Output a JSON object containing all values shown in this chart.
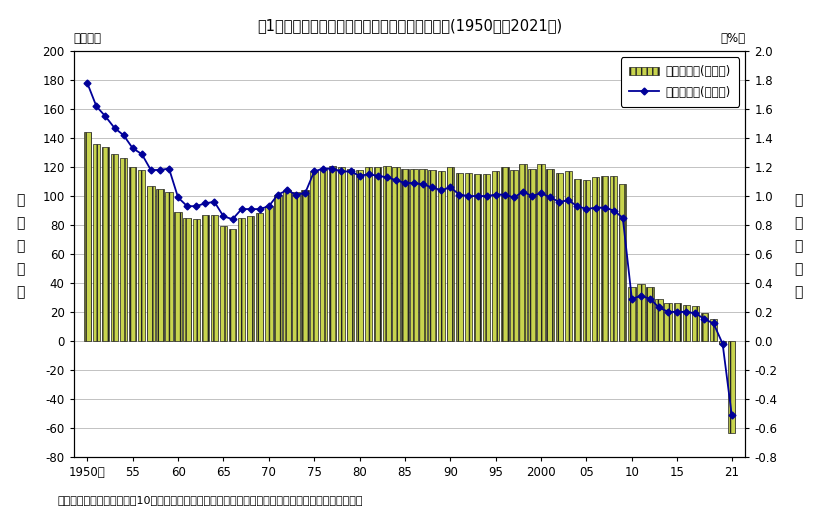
{
  "title": "図1　総人口の人口増減数及び人口増減率の推移(1950年～2021年)",
  "note": "注）　人口増減率は、前年10月から当年９月までの人口増減数を前年人口（期首人口）で除したもの",
  "ylabel_left": "人\n口\n増\n減\n数",
  "ylabel_right": "人\n口\n増\n減\n率",
  "xlabel_unit_left": "（万人）",
  "xlabel_unit_right": "（%）",
  "ylim_left": [
    -80,
    200
  ],
  "ylim_right": [
    -0.8,
    2.0
  ],
  "bar_color": "#c8d44e",
  "bar_edge_color": "#222222",
  "line_color": "#000099",
  "years": [
    1950,
    1951,
    1952,
    1953,
    1954,
    1955,
    1956,
    1957,
    1958,
    1959,
    1960,
    1961,
    1962,
    1963,
    1964,
    1965,
    1966,
    1967,
    1968,
    1969,
    1970,
    1971,
    1972,
    1973,
    1974,
    1975,
    1976,
    1977,
    1978,
    1979,
    1980,
    1981,
    1982,
    1983,
    1984,
    1985,
    1986,
    1987,
    1988,
    1989,
    1990,
    1991,
    1992,
    1993,
    1994,
    1995,
    1996,
    1997,
    1998,
    1999,
    2000,
    2001,
    2002,
    2003,
    2004,
    2005,
    2006,
    2007,
    2008,
    2009,
    2010,
    2011,
    2012,
    2013,
    2014,
    2015,
    2016,
    2017,
    2018,
    2019,
    2020,
    2021
  ],
  "bar_values": [
    144,
    136,
    134,
    129,
    126,
    120,
    118,
    107,
    105,
    103,
    89,
    85,
    84,
    87,
    87,
    79,
    77,
    85,
    86,
    88,
    93,
    101,
    104,
    103,
    104,
    117,
    119,
    121,
    120,
    119,
    118,
    120,
    120,
    121,
    120,
    119,
    119,
    119,
    118,
    117,
    120,
    116,
    116,
    115,
    115,
    117,
    120,
    118,
    122,
    119,
    122,
    119,
    116,
    117,
    112,
    111,
    113,
    114,
    114,
    108,
    37,
    39,
    37,
    29,
    26,
    26,
    25,
    24,
    19,
    15,
    -2,
    -64
  ],
  "line_values": [
    1.78,
    1.62,
    1.55,
    1.47,
    1.42,
    1.33,
    1.29,
    1.18,
    1.18,
    1.19,
    0.99,
    0.93,
    0.93,
    0.95,
    0.96,
    0.86,
    0.84,
    0.91,
    0.91,
    0.91,
    0.93,
    1.01,
    1.04,
    1.01,
    1.02,
    1.17,
    1.19,
    1.19,
    1.17,
    1.17,
    1.14,
    1.15,
    1.14,
    1.13,
    1.11,
    1.09,
    1.09,
    1.08,
    1.06,
    1.04,
    1.06,
    1.01,
    1.0,
    1.0,
    1.0,
    1.01,
    1.01,
    0.99,
    1.03,
    1.0,
    1.02,
    0.99,
    0.96,
    0.97,
    0.93,
    0.91,
    0.92,
    0.92,
    0.9,
    0.85,
    0.29,
    0.31,
    0.29,
    0.23,
    0.2,
    0.2,
    0.2,
    0.19,
    0.15,
    0.12,
    -0.02,
    -0.51
  ],
  "xtick_positions": [
    1950,
    1955,
    1960,
    1965,
    1970,
    1975,
    1980,
    1985,
    1990,
    1995,
    2000,
    2005,
    2010,
    2015,
    2021
  ],
  "xtick_labels": [
    "1950年",
    "55",
    "60",
    "65",
    "70",
    "75",
    "80",
    "85",
    "90",
    "95",
    "2000",
    "05",
    "10",
    "15",
    "21"
  ],
  "yticks_left": [
    -80,
    -60,
    -40,
    -20,
    0,
    20,
    40,
    60,
    80,
    100,
    120,
    140,
    160,
    180,
    200
  ],
  "yticks_right": [
    -0.8,
    -0.6,
    -0.4,
    -0.2,
    0.0,
    0.2,
    0.4,
    0.6,
    0.8,
    1.0,
    1.2,
    1.4,
    1.6,
    1.8,
    2.0
  ],
  "legend_bar_label": "人口増減数(左目盛)",
  "legend_line_label": "人口増減率(右目盛)",
  "background_color": "#ffffff",
  "grid_color": "#aaaaaa"
}
